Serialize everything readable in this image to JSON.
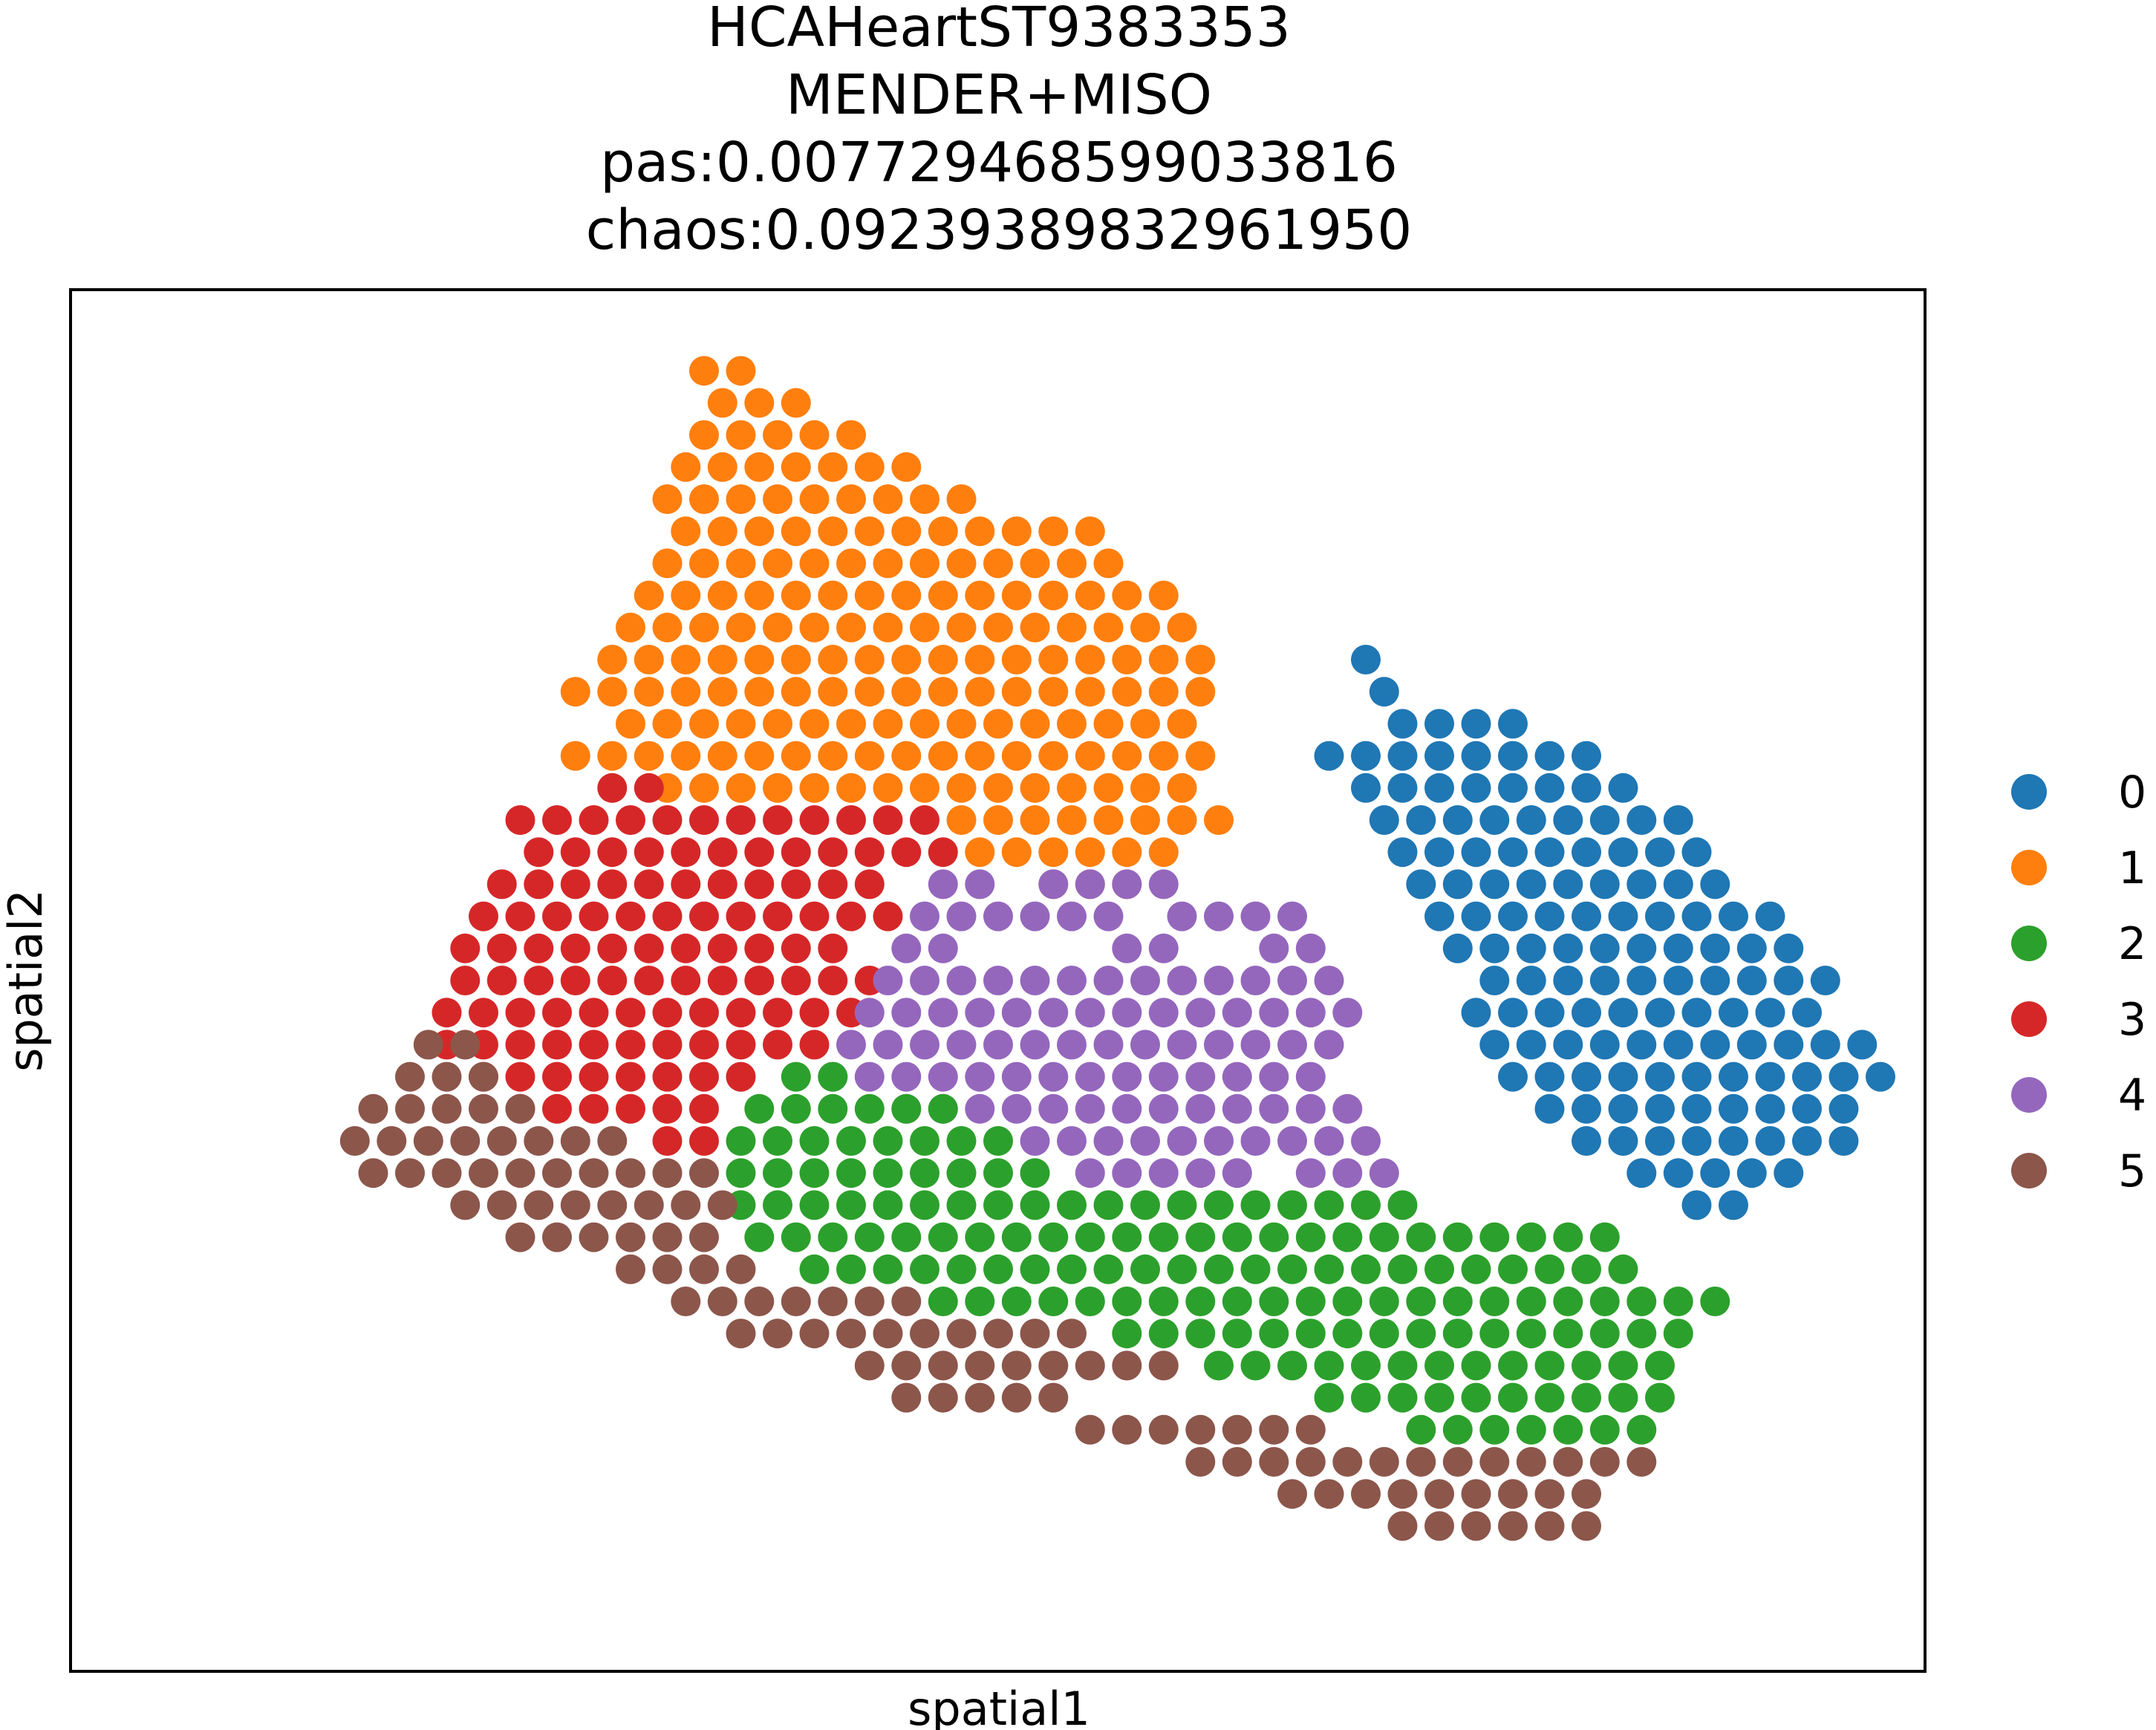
{
  "chart_data": {
    "type": "scatter",
    "title_lines": [
      "HCAHeartST9383353",
      "MENDER+MISO",
      "pas:0.007729468599033816",
      "chaos:0.09239389832961950"
    ],
    "xlabel": "spatial1",
    "ylabel": "spatial2",
    "grid": false,
    "legend_position": "right",
    "xlim": [
      0,
      50
    ],
    "ylim": [
      0,
      37
    ],
    "legend": [
      {
        "label": "0",
        "color": "#1f77b4"
      },
      {
        "label": "1",
        "color": "#ff7f0e"
      },
      {
        "label": "2",
        "color": "#2ca02c"
      },
      {
        "label": "3",
        "color": "#d62728"
      },
      {
        "label": "4",
        "color": "#9467bd"
      },
      {
        "label": "5",
        "color": "#8c564b"
      }
    ],
    "series": [
      {
        "cluster": 0,
        "color": "#1f77b4",
        "rows": [
          [
            7.5,
            32.0,
            32.0
          ],
          [
            6.5,
            32.5,
            33.0
          ],
          [
            5.5,
            33.0,
            36.0
          ],
          [
            4.5,
            31.0,
            38.0
          ],
          [
            3.5,
            32.0,
            39.0
          ],
          [
            2.5,
            32.5,
            40.5
          ],
          [
            1.5,
            33.0,
            41.0
          ],
          [
            0.5,
            33.5,
            42.0
          ],
          [
            -0.5,
            34.0,
            43.5
          ],
          [
            -1.5,
            34.5,
            44.0
          ],
          [
            -2.5,
            35.5,
            45.0
          ],
          [
            -3.5,
            35.0,
            44.5
          ],
          [
            -4.5,
            35.5,
            45.5
          ],
          [
            -5.5,
            36.0,
            46.0
          ],
          [
            -6.5,
            37.0,
            45.5
          ],
          [
            -7.5,
            38.0,
            45.5
          ],
          [
            -8.5,
            39.5,
            44.0
          ],
          [
            -9.5,
            41.0,
            42.5
          ]
        ]
      },
      {
        "cluster": 1,
        "color": "#ff7f0e",
        "rows": [
          [
            16.5,
            14.0,
            15.0
          ],
          [
            15.5,
            14.5,
            16.5
          ],
          [
            14.5,
            14.0,
            18.0
          ],
          [
            13.5,
            13.5,
            19.5
          ],
          [
            12.5,
            13.0,
            21.0
          ],
          [
            11.5,
            13.5,
            24.5
          ],
          [
            10.5,
            13.0,
            25.0
          ],
          [
            9.5,
            12.5,
            26.5
          ],
          [
            8.5,
            12.0,
            27.0
          ],
          [
            7.5,
            11.5,
            27.5
          ],
          [
            6.5,
            10.5,
            28.0
          ],
          [
            5.5,
            12.0,
            27.5
          ],
          [
            4.5,
            10.5,
            28.0
          ],
          [
            3.5,
            13.0,
            27.5
          ],
          [
            2.5,
            21.0,
            28.0
          ],
          [
            1.5,
            21.5,
            26.5
          ],
          [
            0.5,
            23.5,
            25.5
          ]
        ]
      },
      {
        "cluster": 3,
        "color": "#d62728",
        "rows": [
          [
            3.5,
            11.5,
            12.5
          ],
          [
            2.5,
            9.0,
            20.0
          ],
          [
            1.5,
            9.5,
            20.5
          ],
          [
            0.5,
            8.5,
            19.0
          ],
          [
            -0.5,
            8.0,
            19.5
          ],
          [
            -1.5,
            7.5,
            18.0
          ],
          [
            -2.5,
            7.5,
            18.5
          ],
          [
            -3.5,
            7.0,
            18.0
          ],
          [
            -4.5,
            7.0,
            17.0
          ],
          [
            -5.5,
            8.0,
            15.5
          ],
          [
            -6.5,
            9.0,
            14.0
          ],
          [
            -7.5,
            13.0,
            14.0
          ]
        ]
      },
      {
        "cluster": 4,
        "color": "#9467bd",
        "rows": [
          [
            0.5,
            20.5,
            21.5
          ],
          [
            0.5,
            23.5,
            26.5
          ],
          [
            -0.5,
            20.0,
            25.0
          ],
          [
            -0.5,
            27.0,
            30.0
          ],
          [
            -1.5,
            19.5,
            20.5
          ],
          [
            -1.5,
            25.5,
            26.5
          ],
          [
            -1.5,
            29.5,
            30.5
          ],
          [
            -2.5,
            19.0,
            31.0
          ],
          [
            -3.5,
            18.5,
            31.5
          ],
          [
            -4.5,
            18.0,
            31.0
          ],
          [
            -5.5,
            17.5,
            30.5
          ],
          [
            -6.5,
            19.5,
            32.0
          ],
          [
            -7.5,
            23.0,
            32.0
          ],
          [
            -8.5,
            24.5,
            28.5
          ],
          [
            -8.5,
            30.5,
            32.5
          ]
        ]
      },
      {
        "cluster": 2,
        "color": "#2ca02c",
        "rows": [
          [
            -5.5,
            16.5,
            17.5
          ],
          [
            -6.5,
            15.5,
            21.0
          ],
          [
            -7.5,
            15.0,
            22.0
          ],
          [
            -8.5,
            15.0,
            23.5
          ],
          [
            -9.5,
            15.0,
            33.0
          ],
          [
            -10.5,
            15.5,
            39.0
          ],
          [
            -11.5,
            17.0,
            39.5
          ],
          [
            -12.5,
            20.5,
            41.5
          ],
          [
            -13.5,
            25.5,
            41.0
          ],
          [
            -14.5,
            28.0,
            40.5
          ],
          [
            -15.5,
            31.0,
            40.0
          ],
          [
            -16.5,
            33.5,
            39.5
          ]
        ]
      },
      {
        "cluster": 5,
        "color": "#8c564b",
        "rows": [
          [
            -4.5,
            6.5,
            7.5
          ],
          [
            -5.5,
            6.0,
            8.0
          ],
          [
            -6.5,
            5.0,
            9.5
          ],
          [
            -7.5,
            4.5,
            12.0
          ],
          [
            -8.5,
            5.0,
            14.5
          ],
          [
            -9.5,
            7.5,
            15.0
          ],
          [
            -10.5,
            9.0,
            14.5
          ],
          [
            -11.5,
            12.0,
            15.0
          ],
          [
            -12.5,
            13.5,
            20.0
          ],
          [
            -13.5,
            15.0,
            24.5
          ],
          [
            -14.5,
            18.5,
            27.0
          ],
          [
            -15.5,
            19.5,
            24.0
          ],
          [
            -16.5,
            24.5,
            30.5
          ],
          [
            -17.5,
            27.5,
            39.5
          ],
          [
            -18.5,
            30.0,
            38.5
          ],
          [
            -19.5,
            33.0,
            38.0
          ]
        ]
      }
    ]
  }
}
